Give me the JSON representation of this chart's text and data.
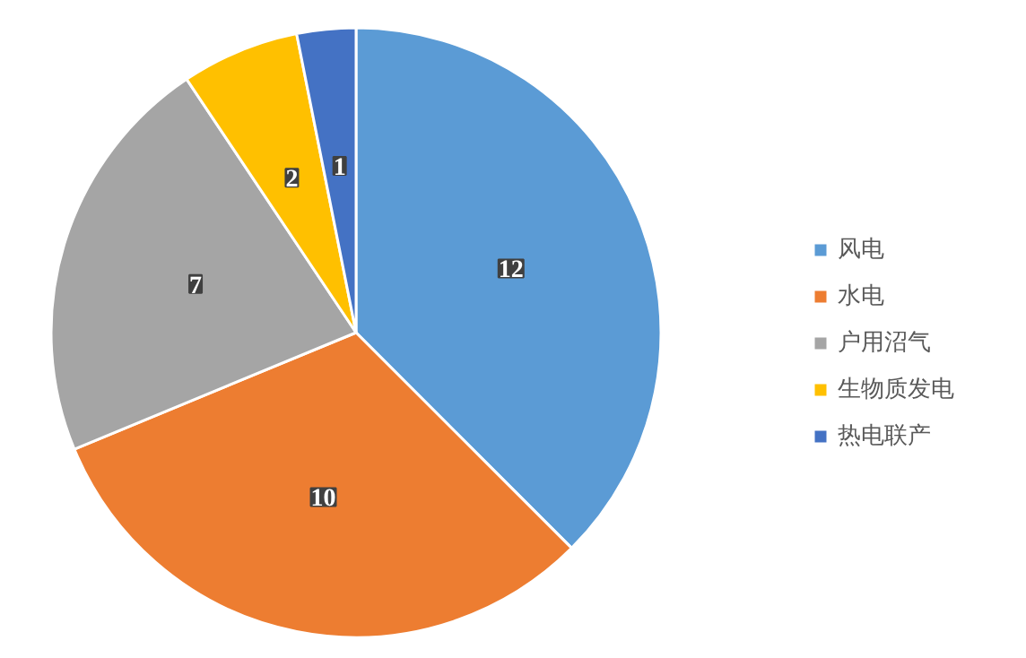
{
  "chart_data": {
    "type": "pie",
    "categories": [
      "风电",
      "水电",
      "户用沼气",
      "生物质发电",
      "热电联产"
    ],
    "values": [
      12,
      10,
      7,
      2,
      1
    ],
    "colors": [
      "#5b9bd5",
      "#ed7d31",
      "#a5a5a5",
      "#ffc000",
      "#4472c4"
    ],
    "data_labels": true,
    "legend": "right"
  }
}
